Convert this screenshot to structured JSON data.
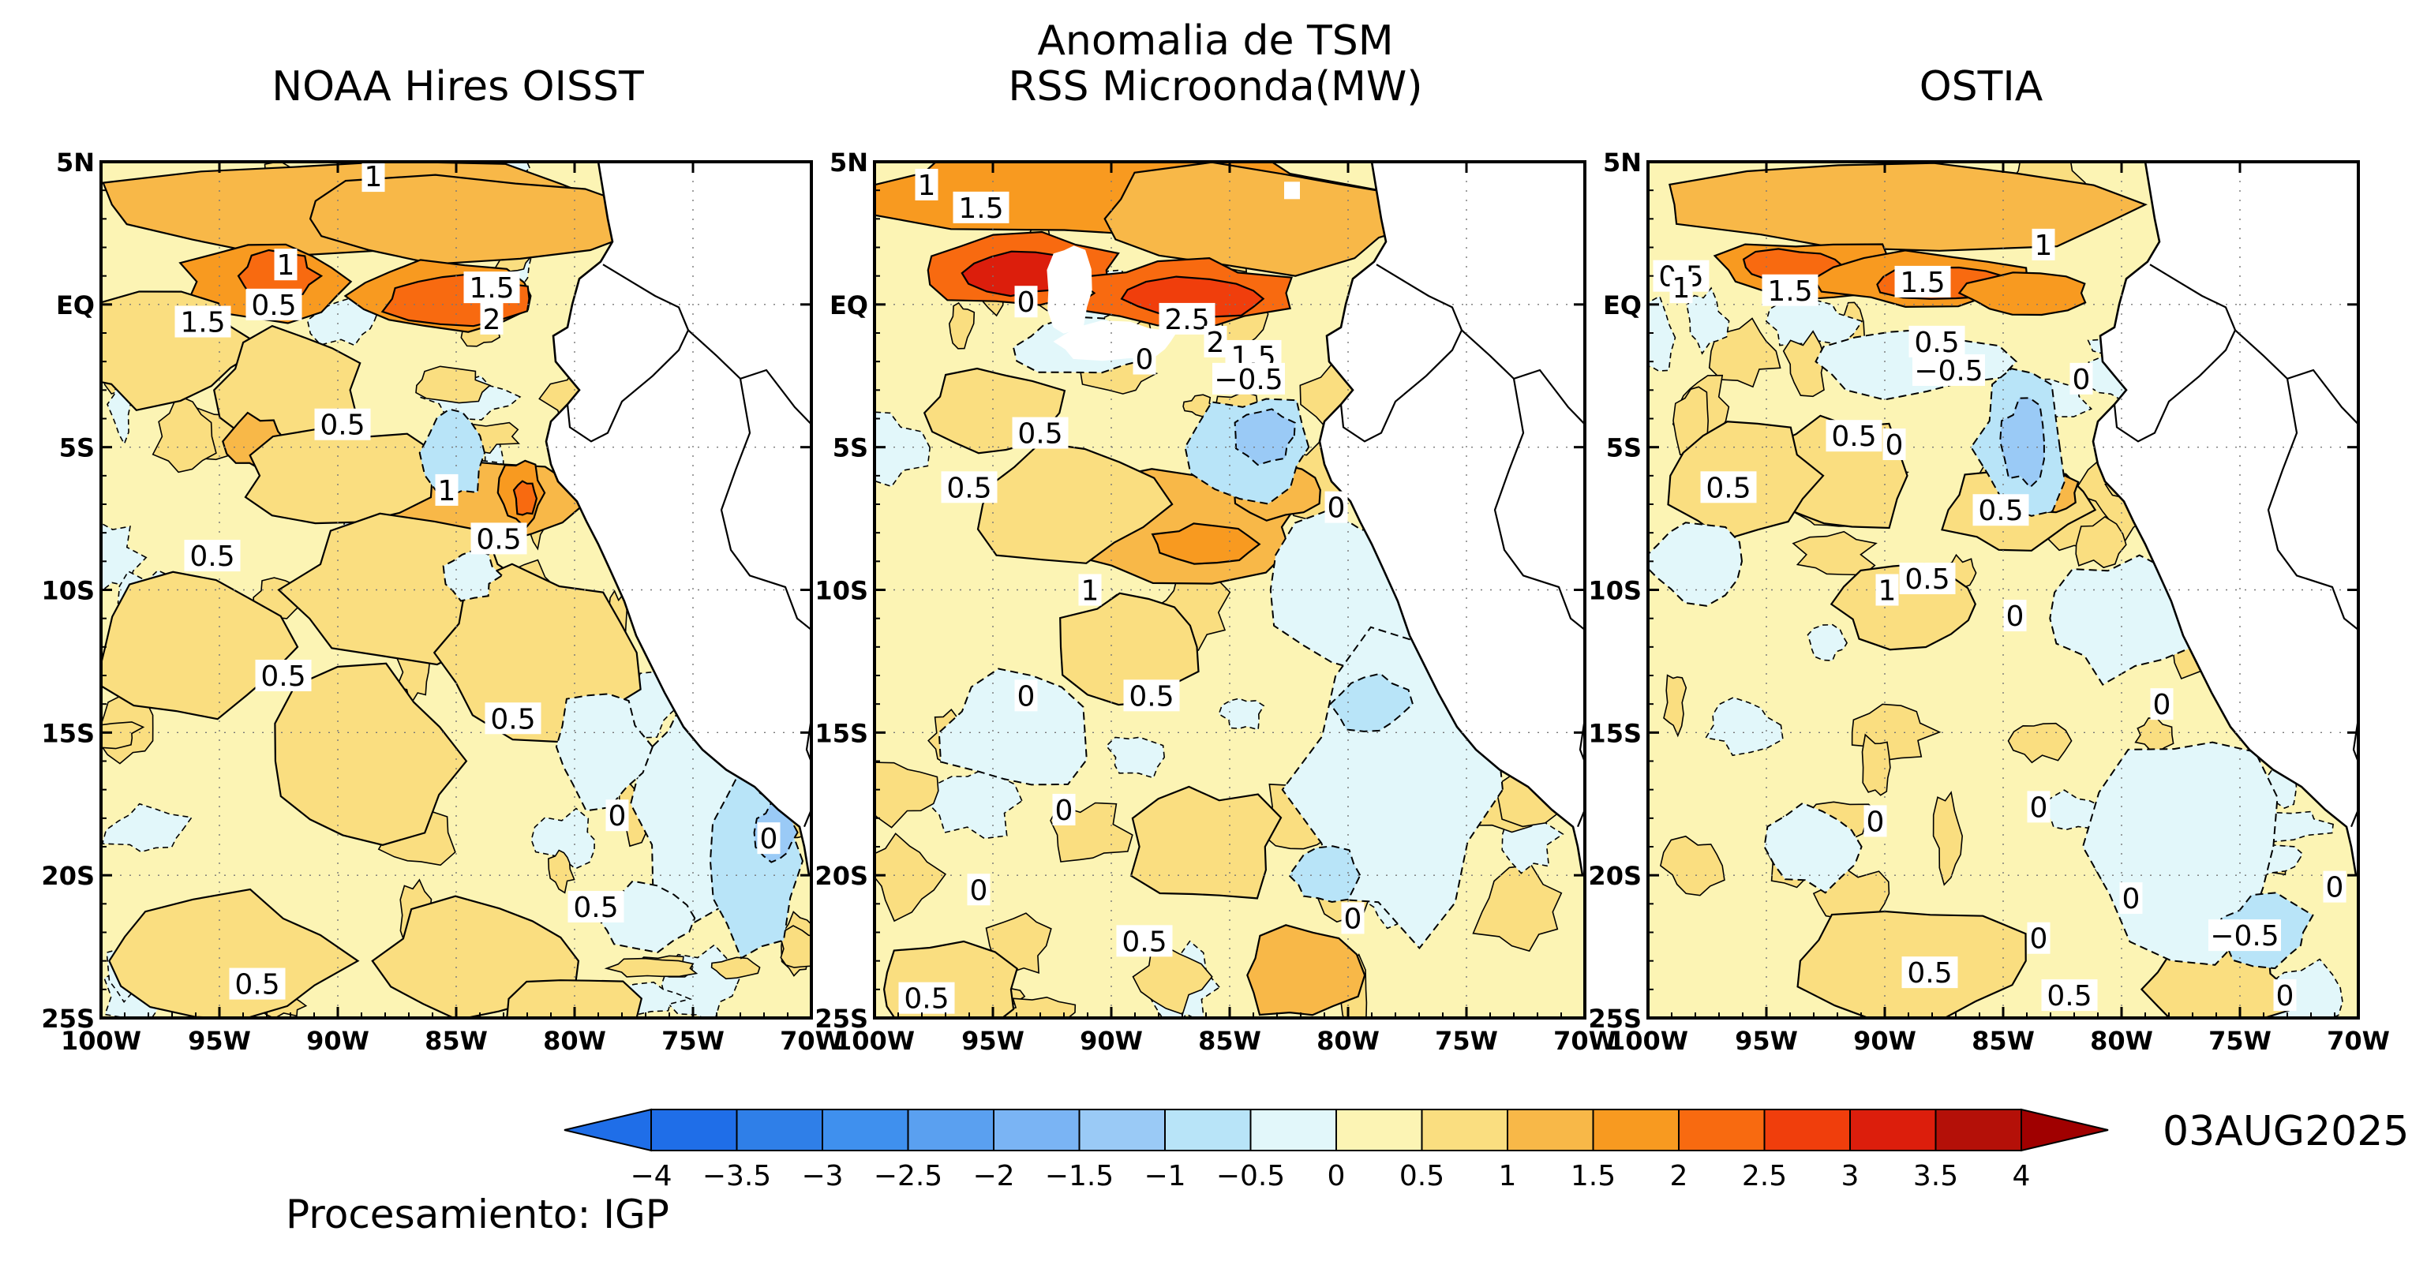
{
  "header": {
    "main_title": "Anomalia de TSM",
    "panel_titles": [
      "NOAA Hires OISST",
      "RSS Microonda(MW)",
      "OSTIA"
    ]
  },
  "axes": {
    "lat_ticks": [
      "5N",
      "EQ",
      "5S",
      "10S",
      "15S",
      "20S",
      "25S"
    ],
    "lon_ticks": [
      "100W",
      "95W",
      "90W",
      "85W",
      "80W",
      "75W",
      "70W"
    ]
  },
  "colorbar": {
    "labels": [
      "−4",
      "−3.5",
      "−3",
      "−2.5",
      "−2",
      "−1.5",
      "−1",
      "−0.5",
      "0",
      "0.5",
      "1",
      "1.5",
      "2",
      "2.5",
      "3",
      "3.5",
      "4"
    ],
    "colors": [
      "#1f6ee8",
      "#2f7fe8",
      "#3f90ee",
      "#5aa0f0",
      "#7ab4f4",
      "#9acaf6",
      "#b8e4f8",
      "#e2f7fa",
      "#fcf4b4",
      "#fade80",
      "#f8b848",
      "#f89a20",
      "#f86a10",
      "#f03e0c",
      "#dc1e0c",
      "#b41008"
    ]
  },
  "panels": [
    {
      "name": "NOAA Hires OISST",
      "contour_labels": [
        {
          "text": "1",
          "lon": -88.5,
          "lat": 4.5
        },
        {
          "text": "1",
          "lon": -92.2,
          "lat": 1.4
        },
        {
          "text": "0.5",
          "lon": -92.7,
          "lat": 0.0
        },
        {
          "text": "1.5",
          "lon": -95.7,
          "lat": -0.6
        },
        {
          "text": "1.5",
          "lon": -83.5,
          "lat": 0.6
        },
        {
          "text": "2",
          "lon": -83.5,
          "lat": -0.5
        },
        {
          "text": "0.5",
          "lon": -89.8,
          "lat": -4.2
        },
        {
          "text": "1",
          "lon": -85.4,
          "lat": -6.5
        },
        {
          "text": "0.5",
          "lon": -83.2,
          "lat": -8.2
        },
        {
          "text": "0.5",
          "lon": -95.3,
          "lat": -8.8
        },
        {
          "text": "0.5",
          "lon": -92.3,
          "lat": -13.0
        },
        {
          "text": "0.5",
          "lon": -82.6,
          "lat": -14.5
        },
        {
          "text": "0",
          "lon": -78.2,
          "lat": -17.9
        },
        {
          "text": "0",
          "lon": -71.8,
          "lat": -18.7
        },
        {
          "text": "0.5",
          "lon": -79.1,
          "lat": -21.1
        },
        {
          "text": "0.5",
          "lon": -93.4,
          "lat": -23.8
        }
      ]
    },
    {
      "name": "RSS Microonda(MW)",
      "contour_labels": [
        {
          "text": "1",
          "lon": -97.8,
          "lat": 4.2
        },
        {
          "text": "1.5",
          "lon": -95.5,
          "lat": 3.4
        },
        {
          "text": "0",
          "lon": -93.6,
          "lat": 0.1
        },
        {
          "text": "2.5",
          "lon": -86.8,
          "lat": -0.5
        },
        {
          "text": "2",
          "lon": -85.6,
          "lat": -1.3
        },
        {
          "text": "0",
          "lon": -88.6,
          "lat": -1.9
        },
        {
          "text": "1.5",
          "lon": -84.0,
          "lat": -1.8
        },
        {
          "text": "−0.5",
          "lon": -84.2,
          "lat": -2.6
        },
        {
          "text": "0.5",
          "lon": -93.0,
          "lat": -4.5
        },
        {
          "text": "0.5",
          "lon": -96.0,
          "lat": -6.4
        },
        {
          "text": "0",
          "lon": -80.5,
          "lat": -7.1
        },
        {
          "text": "1",
          "lon": -90.9,
          "lat": -10.0
        },
        {
          "text": "0",
          "lon": -93.6,
          "lat": -13.7
        },
        {
          "text": "0.5",
          "lon": -88.3,
          "lat": -13.7
        },
        {
          "text": "0",
          "lon": -92.0,
          "lat": -17.7
        },
        {
          "text": "0",
          "lon": -95.6,
          "lat": -20.5
        },
        {
          "text": "0",
          "lon": -79.8,
          "lat": -21.5
        },
        {
          "text": "0.5",
          "lon": -88.6,
          "lat": -22.3
        },
        {
          "text": "0.5",
          "lon": -97.8,
          "lat": -24.3
        }
      ]
    },
    {
      "name": "OSTIA",
      "contour_labels": [
        {
          "text": "1",
          "lon": -83.3,
          "lat": 2.1
        },
        {
          "text": "0.5",
          "lon": -98.6,
          "lat": 1.0
        },
        {
          "text": "1",
          "lon": -98.6,
          "lat": 0.6
        },
        {
          "text": "1.5",
          "lon": -94.0,
          "lat": 0.5
        },
        {
          "text": "1.5",
          "lon": -88.4,
          "lat": 0.8
        },
        {
          "text": "0.5",
          "lon": -87.8,
          "lat": -1.3
        },
        {
          "text": "−0.5",
          "lon": -87.3,
          "lat": -2.3
        },
        {
          "text": "0",
          "lon": -81.7,
          "lat": -2.6
        },
        {
          "text": "0.5",
          "lon": -91.3,
          "lat": -4.6
        },
        {
          "text": "0",
          "lon": -89.6,
          "lat": -4.9
        },
        {
          "text": "0.5",
          "lon": -96.6,
          "lat": -6.4
        },
        {
          "text": "0.5",
          "lon": -85.1,
          "lat": -7.2
        },
        {
          "text": "1",
          "lon": -89.9,
          "lat": -10.0
        },
        {
          "text": "0.5",
          "lon": -88.2,
          "lat": -9.6
        },
        {
          "text": "0",
          "lon": -84.5,
          "lat": -10.9
        },
        {
          "text": "0",
          "lon": -78.3,
          "lat": -14.0
        },
        {
          "text": "0",
          "lon": -90.4,
          "lat": -18.1
        },
        {
          "text": "0",
          "lon": -83.5,
          "lat": -17.6
        },
        {
          "text": "0",
          "lon": -79.6,
          "lat": -20.8
        },
        {
          "text": "0",
          "lon": -71.0,
          "lat": -20.4
        },
        {
          "text": "−0.5",
          "lon": -74.8,
          "lat": -22.1
        },
        {
          "text": "0",
          "lon": -83.5,
          "lat": -22.2
        },
        {
          "text": "0.5",
          "lon": -88.1,
          "lat": -23.4
        },
        {
          "text": "0.5",
          "lon": -82.2,
          "lat": -24.2
        },
        {
          "text": "0",
          "lon": -73.1,
          "lat": -24.2
        }
      ]
    }
  ],
  "footer": {
    "processing": "Procesamiento: IGP",
    "date": "03AUG2025"
  }
}
